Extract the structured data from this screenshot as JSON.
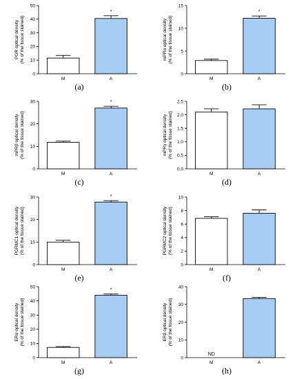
{
  "colors": {
    "M": "#ffffff",
    "A": "#a8cdf5",
    "stroke": "#000000"
  },
  "chart_data": [
    {
      "type": "bar",
      "panel": "(a)",
      "ylabel_lines": [
        "PGR optical density",
        "(% of the tissue stained)"
      ],
      "categories": [
        "M",
        "A"
      ],
      "values": [
        11.5,
        40.5
      ],
      "errors": [
        2.0,
        2.0
      ],
      "annotations": [
        "",
        "*"
      ],
      "ylim": [
        0,
        50
      ],
      "yticks": [
        0,
        10,
        20,
        30,
        40,
        50
      ]
    },
    {
      "type": "bar",
      "panel": "(b)",
      "ylabel_lines": [
        "mPRα optical density",
        "(% of the tissue stained)"
      ],
      "categories": [
        "M",
        "A"
      ],
      "values": [
        2.9,
        12.2
      ],
      "errors": [
        0.3,
        0.5
      ],
      "annotations": [
        "",
        "*"
      ],
      "ylim": [
        0,
        15
      ],
      "yticks": [
        0,
        5,
        10,
        15
      ]
    },
    {
      "type": "bar",
      "panel": "(c)",
      "ylabel_lines": [
        "mPRβ optical density",
        "(% of the tissue stained)"
      ],
      "categories": [
        "M",
        "A"
      ],
      "values": [
        11.8,
        27.0
      ],
      "errors": [
        0.5,
        0.8
      ],
      "annotations": [
        "",
        "*"
      ],
      "ylim": [
        0,
        30
      ],
      "yticks": [
        0,
        10,
        20,
        30
      ]
    },
    {
      "type": "bar",
      "panel": "(d)",
      "ylabel_lines": [
        "mPRγ optical density",
        "(% of the tissue stained)"
      ],
      "categories": [
        "M",
        "A"
      ],
      "values": [
        2.1,
        2.22
      ],
      "errors": [
        0.12,
        0.15
      ],
      "annotations": [
        "",
        ""
      ],
      "ylim": [
        0,
        2.5
      ],
      "yticks": [
        0.0,
        0.5,
        1.0,
        1.5,
        2.0,
        2.5
      ],
      "ytick_labels": [
        "0.0",
        "0.5",
        "1.0",
        "1.5",
        "2.0",
        "2.5"
      ]
    },
    {
      "type": "bar",
      "panel": "(e)",
      "ylabel_lines": [
        "PGRMC1 optical density",
        "(% of the tissue stained)"
      ],
      "categories": [
        "M",
        "A"
      ],
      "values": [
        10.0,
        27.8
      ],
      "errors": [
        0.8,
        0.6
      ],
      "annotations": [
        "",
        "*"
      ],
      "ylim": [
        0,
        30
      ],
      "yticks": [
        0,
        10,
        20,
        30
      ]
    },
    {
      "type": "bar",
      "panel": "(f)",
      "ylabel_lines": [
        "PGRMC2 optical density",
        "(% of the tissue stained)"
      ],
      "categories": [
        "M",
        "A"
      ],
      "values": [
        6.85,
        7.6
      ],
      "errors": [
        0.25,
        0.5
      ],
      "annotations": [
        "",
        ""
      ],
      "ylim": [
        0,
        10
      ],
      "yticks": [
        0,
        2,
        4,
        6,
        8,
        10
      ]
    },
    {
      "type": "bar",
      "panel": "(g)",
      "ylabel_lines": [
        "ERα optical density",
        "(% of the tissue stained)"
      ],
      "categories": [
        "M",
        "A"
      ],
      "values": [
        7.2,
        44.0
      ],
      "errors": [
        0.6,
        0.8
      ],
      "annotations": [
        "",
        "*"
      ],
      "ylim": [
        0,
        50
      ],
      "yticks": [
        0,
        10,
        20,
        30,
        40,
        50
      ]
    },
    {
      "type": "bar",
      "panel": "(h)",
      "ylabel_lines": [
        "ERβ optical density",
        "(% of the tissue stained)"
      ],
      "categories": [
        "M",
        "A"
      ],
      "values": [
        null,
        33.3
      ],
      "errors": [
        0,
        0.7
      ],
      "annotations": [
        "ND",
        ""
      ],
      "ylim": [
        0,
        40
      ],
      "yticks": [
        0,
        10,
        20,
        30,
        40
      ]
    }
  ]
}
